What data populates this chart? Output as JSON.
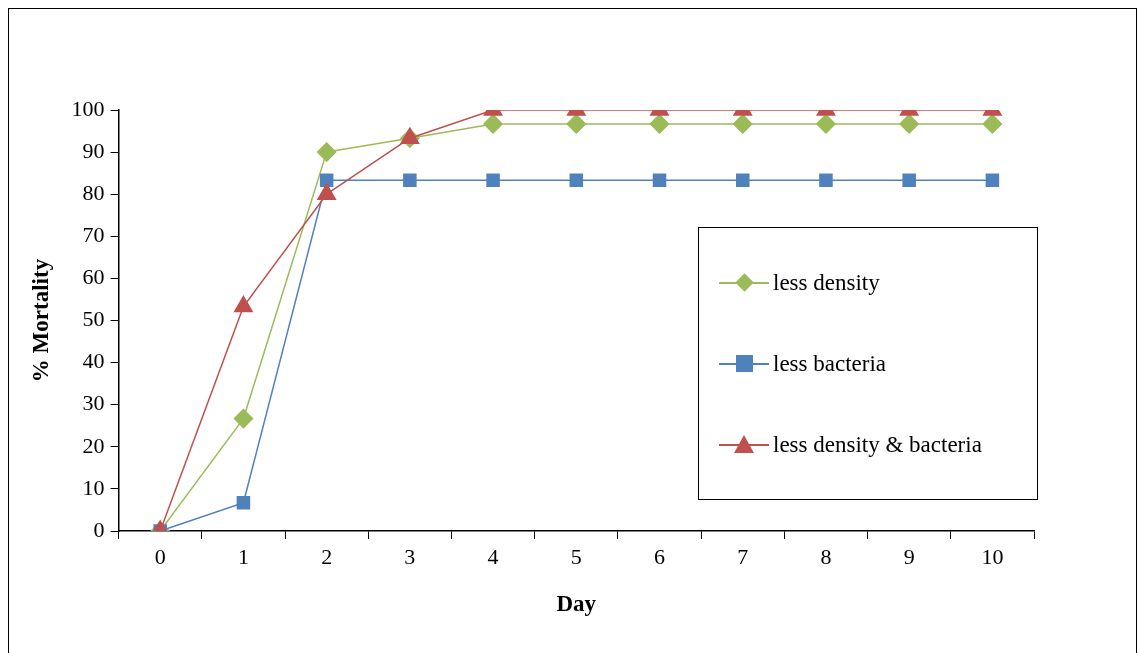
{
  "chart_data": {
    "type": "line",
    "xlabel": "Day",
    "ylabel": "% Mortality",
    "categories": [
      "0",
      "1",
      "2",
      "3",
      "4",
      "5",
      "6",
      "7",
      "8",
      "9",
      "10"
    ],
    "series": [
      {
        "name": "less density",
        "color": "#9bbb59",
        "marker": "diamond",
        "values": [
          0,
          26.7,
          90,
          93.3,
          96.7,
          96.7,
          96.7,
          96.7,
          96.7,
          96.7,
          96.7
        ]
      },
      {
        "name": "less bacteria",
        "color": "#4f81bd",
        "marker": "square",
        "values": [
          0,
          6.7,
          83.3,
          83.3,
          83.3,
          83.3,
          83.3,
          83.3,
          83.3,
          83.3,
          83.3
        ]
      },
      {
        "name": "less density & bacteria",
        "color": "#c0504d",
        "marker": "triangle",
        "values": [
          0,
          53.3,
          80,
          93.3,
          100,
          100,
          100,
          100,
          100,
          100,
          100
        ]
      }
    ],
    "ylim": [
      0,
      100
    ],
    "yticks": [
      0,
      10,
      20,
      30,
      40,
      50,
      60,
      70,
      80,
      90,
      100
    ],
    "grid": false,
    "legend": "right",
    "line_style": "solid"
  }
}
